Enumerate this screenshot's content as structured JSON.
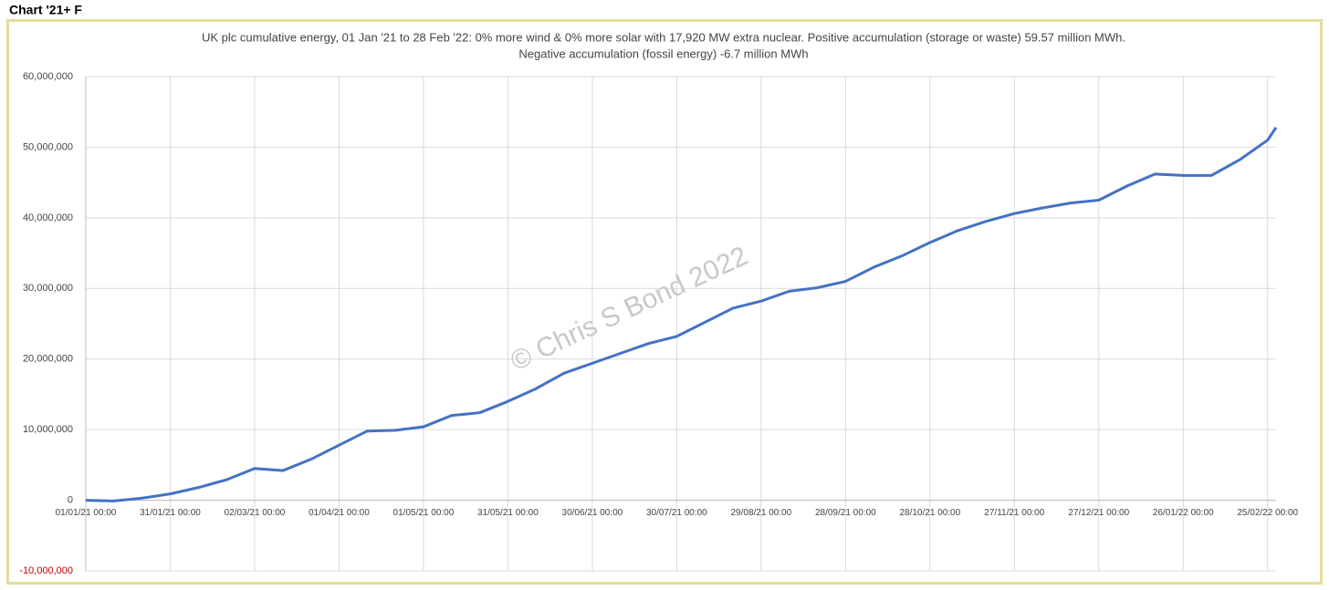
{
  "header": "Chart '21+ F",
  "chart_data": {
    "type": "line",
    "title": [
      "UK plc cumulative energy, 01 Jan '21 to 28 Feb '22: 0% more wind & 0% more solar with 17,920 MW extra nuclear.  Positive accumulation (storage or waste) 59.57 million MWh.",
      "Negative accumulation (fossil energy) -6.7 million MWh"
    ],
    "watermark": "© Chris S Bond  2022",
    "x": [
      "01/01/21 00:00",
      "11/01/21 00:00",
      "21/01/21 00:00",
      "31/01/21 00:00",
      "10/02/21 00:00",
      "20/02/21 00:00",
      "02/03/21 00:00",
      "12/03/21 00:00",
      "22/03/21 00:00",
      "01/04/21 00:00",
      "11/04/21 00:00",
      "21/04/21 00:00",
      "01/05/21 00:00",
      "11/05/21 00:00",
      "21/05/21 00:00",
      "31/05/21 00:00",
      "10/06/21 00:00",
      "20/06/21 00:00",
      "30/06/21 00:00",
      "10/07/21 00:00",
      "20/07/21 00:00",
      "30/07/21 00:00",
      "09/08/21 00:00",
      "19/08/21 00:00",
      "29/08/21 00:00",
      "08/09/21 00:00",
      "18/09/21 00:00",
      "28/09/21 00:00",
      "08/10/21 00:00",
      "18/10/21 00:00",
      "28/10/21 00:00",
      "07/11/21 00:00",
      "17/11/21 00:00",
      "27/11/21 00:00",
      "07/12/21 00:00",
      "17/12/21 00:00",
      "27/12/21 00:00",
      "06/01/22 00:00",
      "16/01/22 00:00",
      "26/01/22 00:00",
      "05/02/22 00:00",
      "15/02/22 00:00",
      "25/02/22 00:00",
      "28/02/22 00:00"
    ],
    "series": [
      {
        "color": "#4472c4",
        "values": [
          0,
          -100000,
          300000,
          900000,
          1800000,
          2900000,
          4500000,
          4200000,
          5800000,
          7800000,
          9800000,
          9900000,
          10400000,
          12000000,
          12400000,
          14000000,
          15800000,
          18000000,
          19400000,
          20800000,
          22200000,
          23200000,
          25200000,
          27200000,
          28200000,
          29600000,
          30100000,
          31000000,
          33000000,
          34600000,
          36500000,
          38200000,
          39500000,
          40600000,
          41400000,
          42100000,
          42500000,
          44500000,
          46200000,
          46000000,
          46000000,
          48200000,
          51000000,
          52800000
        ]
      }
    ],
    "xlim": [
      "01/01/21 00:00",
      "28/02/22 00:00"
    ],
    "xticks": [
      "01/01/21 00:00",
      "31/01/21 00:00",
      "02/03/21 00:00",
      "01/04/21 00:00",
      "01/05/21 00:00",
      "31/05/21 00:00",
      "30/06/21 00:00",
      "30/07/21 00:00",
      "29/08/21 00:00",
      "28/09/21 00:00",
      "28/10/21 00:00",
      "27/11/21 00:00",
      "27/12/21 00:00",
      "26/01/22 00:00",
      "25/02/22 00:00"
    ],
    "ylim": [
      -10000000,
      60000000
    ],
    "yticks": [
      {
        "value": -10000000,
        "label": "-10,000,000"
      },
      0,
      {
        "value": 10000000,
        "label": "10,000,000"
      },
      {
        "value": 20000000,
        "label": "20,000,000"
      },
      {
        "value": 30000000,
        "label": "30,000,000"
      },
      {
        "value": 40000000,
        "label": "40,000,000"
      },
      {
        "value": 50000000,
        "label": "50,000,000"
      },
      {
        "value": 60000000,
        "label": "60,000,000"
      }
    ],
    "negative_tick_color": "#c00000",
    "grid": true
  }
}
